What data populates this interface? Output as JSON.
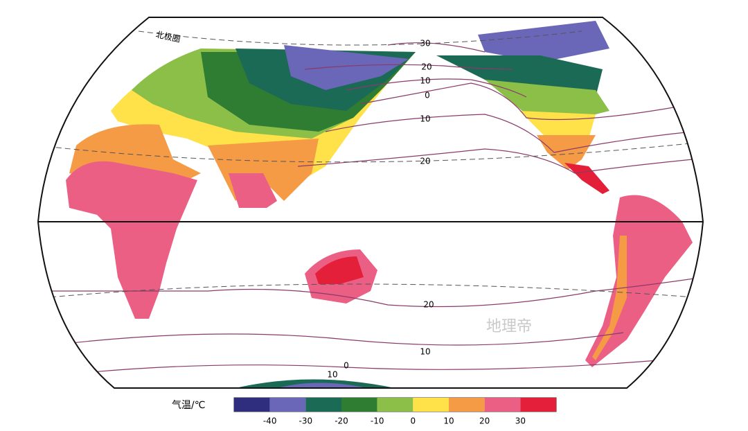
{
  "map": {
    "arctic_label": "北极圈",
    "isotherm_labels": [
      "30",
      "20",
      "10",
      "0",
      "10",
      "20",
      "20",
      "10",
      "0",
      "10"
    ],
    "watermark": "地理帝",
    "legend": {
      "title": "气温/℃",
      "colors": [
        "#2e2d7e",
        "#6a67b8",
        "#1b6a55",
        "#2e7d32",
        "#8cbf48",
        "#ffe14a",
        "#f59a45",
        "#ec5f84",
        "#e41f3a"
      ],
      "ticks": [
        -40,
        -30,
        -20,
        -10,
        0,
        10,
        20,
        30
      ]
    }
  }
}
